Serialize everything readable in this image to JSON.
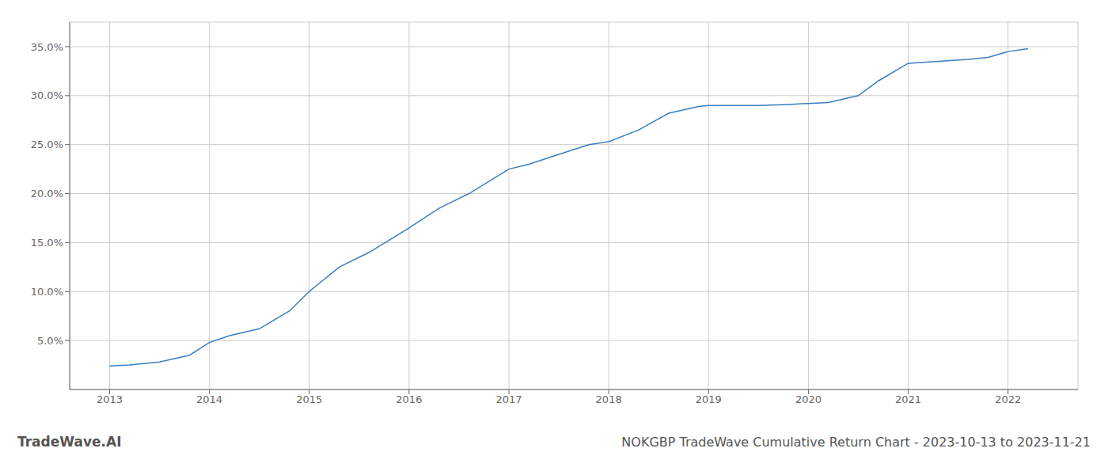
{
  "chart_data": {
    "type": "line",
    "title": "NOKGBP TradeWave Cumulative Return Chart - 2023-10-13 to 2023-11-21",
    "annotations": [
      "TradeWave.AI"
    ],
    "x": [
      2013.0,
      2013.2,
      2013.5,
      2013.8,
      2014.0,
      2014.2,
      2014.5,
      2014.8,
      2015.0,
      2015.3,
      2015.6,
      2016.0,
      2016.3,
      2016.6,
      2017.0,
      2017.2,
      2017.5,
      2017.8,
      2018.0,
      2018.3,
      2018.6,
      2018.9,
      2019.0,
      2019.2,
      2019.5,
      2019.8,
      2020.0,
      2020.2,
      2020.5,
      2020.7,
      2021.0,
      2021.3,
      2021.6,
      2021.8,
      2022.0,
      2022.2
    ],
    "values": [
      2.4,
      2.5,
      2.8,
      3.5,
      4.8,
      5.5,
      6.2,
      8.0,
      10.0,
      12.5,
      14.0,
      16.5,
      18.5,
      20.0,
      22.5,
      23.0,
      24.0,
      25.0,
      25.3,
      26.5,
      28.2,
      28.9,
      29.0,
      29.0,
      29.0,
      29.1,
      29.2,
      29.3,
      30.0,
      31.5,
      33.3,
      33.5,
      33.7,
      33.9,
      34.5,
      34.8
    ],
    "color": "#3a7ebf",
    "xlim": [
      2012.6,
      2022.7
    ],
    "ylim": [
      0,
      37.5
    ],
    "xticks": [
      2013,
      2014,
      2015,
      2016,
      2017,
      2018,
      2019,
      2020,
      2021,
      2022
    ],
    "yticks": [
      {
        "value": 5.0,
        "label": "5.0%"
      },
      {
        "value": 10.0,
        "label": "10.0%"
      },
      {
        "value": 15.0,
        "label": "15.0%"
      },
      {
        "value": 20.0,
        "label": "20.0%"
      },
      {
        "value": 25.0,
        "label": "25.0%"
      },
      {
        "value": 30.0,
        "label": "30.0%"
      },
      {
        "value": 35.0,
        "label": "35.0%"
      }
    ],
    "grid": true
  }
}
